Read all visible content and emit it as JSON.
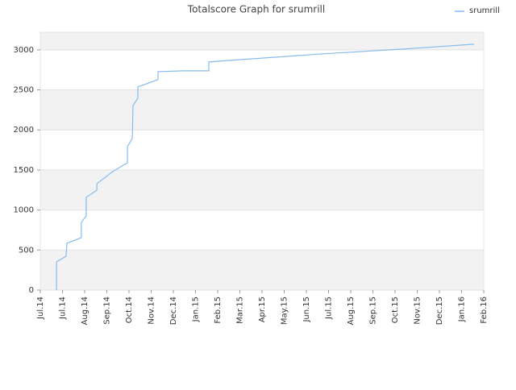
{
  "chart_data": {
    "type": "line",
    "title": "Totalscore Graph for srumrill",
    "series": [
      {
        "name": "srumrill",
        "color": "#88bbee",
        "x": [
          0.73,
          0.73,
          1.16,
          1.2,
          1.85,
          1.85,
          2.07,
          2.07,
          2.55,
          2.55,
          3.27,
          3.93,
          3.93,
          4.15,
          4.18,
          4.4,
          4.4,
          5.31,
          5.31,
          6.47,
          7.6,
          7.6,
          9.09,
          12.73,
          16.36,
          19.56
        ],
        "values": [
          0,
          352,
          423,
          584,
          655,
          846,
          927,
          1158,
          1248,
          1329,
          1480,
          1591,
          1792,
          1893,
          2305,
          2396,
          2537,
          2628,
          2728,
          2738,
          2738,
          2849,
          2879,
          2950,
          3010,
          3070
        ]
      }
    ],
    "xlim": [
      0,
      20
    ],
    "xticks": [
      {
        "value": 0,
        "label": "Jul.14"
      },
      {
        "value": 1,
        "label": "Jul.14"
      },
      {
        "value": 2,
        "label": "Aug.14"
      },
      {
        "value": 3,
        "label": "Sep.14"
      },
      {
        "value": 4,
        "label": "Oct.14"
      },
      {
        "value": 5,
        "label": "Nov.14"
      },
      {
        "value": 6,
        "label": "Dec.14"
      },
      {
        "value": 7,
        "label": "Jan.15"
      },
      {
        "value": 8,
        "label": "Feb.15"
      },
      {
        "value": 9,
        "label": "Mar.15"
      },
      {
        "value": 10,
        "label": "Apr.15"
      },
      {
        "value": 11,
        "label": "May.15"
      },
      {
        "value": 12,
        "label": "Jun.15"
      },
      {
        "value": 13,
        "label": "Jul.15"
      },
      {
        "value": 14,
        "label": "Aug.15"
      },
      {
        "value": 15,
        "label": "Sep.15"
      },
      {
        "value": 16,
        "label": "Oct.15"
      },
      {
        "value": 17,
        "label": "Nov.15"
      },
      {
        "value": 18,
        "label": "Dec.15"
      },
      {
        "value": 19,
        "label": "Jan.16"
      },
      {
        "value": 20,
        "label": "Feb.16"
      }
    ],
    "ylim": [
      0,
      3220
    ],
    "yticks": [
      0,
      500,
      1000,
      1500,
      2000,
      2500,
      3000
    ],
    "grid": true
  }
}
